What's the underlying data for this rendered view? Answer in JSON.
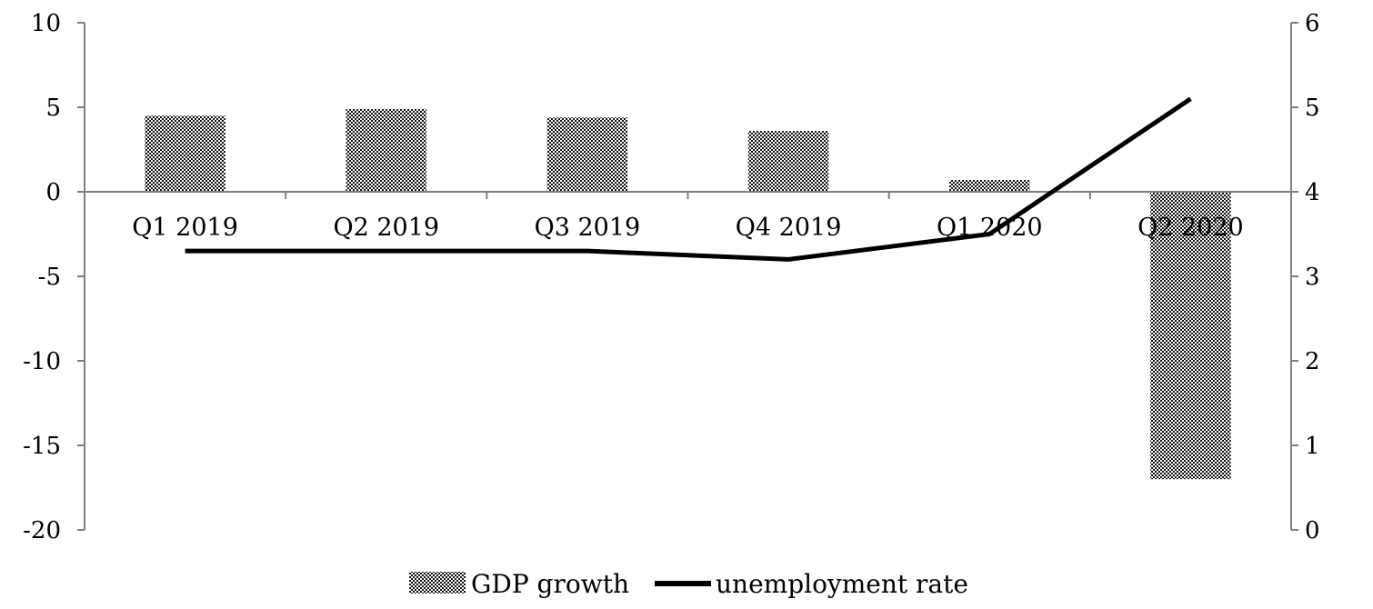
{
  "chart_data": {
    "type": "bar",
    "categories": [
      "Q1 2019",
      "Q2 2019",
      "Q3 2019",
      "Q4 2019",
      "Q1 2020",
      "Q2 2020"
    ],
    "series": [
      {
        "name": "GDP growth",
        "type": "bar",
        "axis": "left",
        "values": [
          4.5,
          4.9,
          4.4,
          3.6,
          0.7,
          -17.0
        ],
        "fill": "dotted-pattern"
      },
      {
        "name": "unemployment rate",
        "type": "line",
        "axis": "right",
        "values": [
          3.3,
          3.3,
          3.3,
          3.2,
          3.5,
          5.1
        ],
        "color": "#000000"
      }
    ],
    "y_left": {
      "min": -20,
      "max": 10,
      "ticks": [
        "10",
        "5",
        "0",
        "-5",
        "-10",
        "-15",
        "-20"
      ]
    },
    "y_right": {
      "min": 0,
      "max": 6,
      "ticks": [
        "6",
        "5",
        "4",
        "3",
        "2",
        "1",
        "0"
      ]
    },
    "title": "",
    "xlabel": "",
    "ylabel": "",
    "grid": false,
    "legend": {
      "position": "bottom"
    }
  }
}
